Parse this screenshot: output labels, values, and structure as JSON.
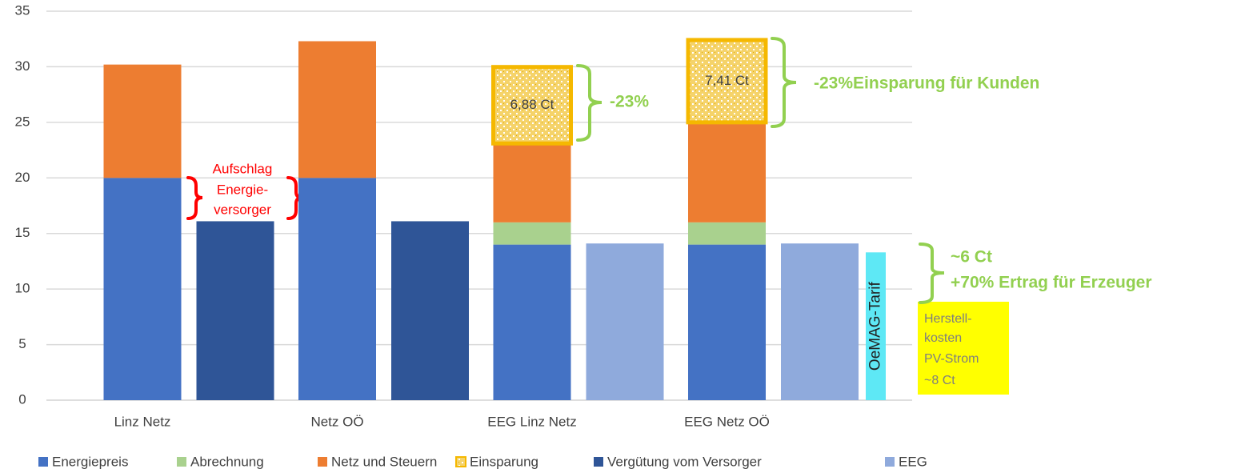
{
  "chart_data": {
    "type": "bar",
    "categories": [
      "Linz Netz",
      "Netz OÖ",
      "EEG Linz Netz",
      "EEG Netz OÖ"
    ],
    "series": [
      {
        "name": "Energiepreis",
        "color": "#4472c4",
        "stack": "main",
        "values": [
          20,
          20,
          14,
          14
        ]
      },
      {
        "name": "Abrechnung",
        "color": "#a9d18e",
        "stack": "main",
        "values": [
          null,
          null,
          2,
          2
        ]
      },
      {
        "name": "Netz und Steuern",
        "color": "#ed7d31",
        "stack": "main",
        "values": [
          10.2,
          12.3,
          7.1,
          9
        ]
      },
      {
        "name": "Einsparung",
        "color": "#f5c342",
        "stack": "main",
        "values": [
          null,
          null,
          6.88,
          7.41
        ],
        "value_labels": [
          null,
          null,
          "6,88 Ct",
          "7,41 Ct"
        ]
      },
      {
        "name": "Vergütung vom Versorger",
        "color": "#2f5597",
        "stack": "side",
        "values": [
          16.1,
          16.1,
          null,
          null
        ]
      },
      {
        "name": "EEG",
        "color": "#8faadc",
        "stack": "side",
        "values": [
          null,
          null,
          14.1,
          14.1
        ]
      }
    ],
    "extra_bar": {
      "label": "OeMAG-Tarif",
      "value": 13.3,
      "color": "#5ee8f5"
    },
    "ylim": [
      0,
      35
    ],
    "yticks": [
      0,
      5,
      10,
      15,
      20,
      25,
      30,
      35
    ],
    "grid": true,
    "legend": "bottom",
    "annotations": {
      "aufschlag": [
        "Aufschlag",
        "Energie-",
        "versorger"
      ],
      "saving_small": "-23%",
      "saving_big": "-23%Einsparung für Kunden",
      "producer": [
        "~6 Ct",
        "+70% Ertrag für Erzeuger"
      ],
      "cost_box": [
        "Herstell-",
        "kosten",
        "PV-Strom",
        "~8 Ct"
      ]
    }
  }
}
